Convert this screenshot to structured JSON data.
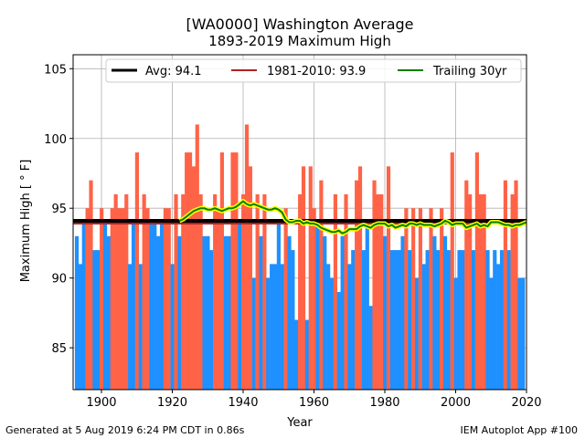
{
  "chart_data": {
    "type": "bar",
    "title": "[WA0000] Washington Average",
    "subtitle": "1893-2019 Maximum High",
    "xlabel": "Year",
    "ylabel": "Maximum High [$^\\circ$F]",
    "ylabel_display": "Maximum High [ ° F]",
    "xlim": [
      1892,
      2020
    ],
    "ylim": [
      82,
      106
    ],
    "xticks": [
      1900,
      1920,
      1940,
      1960,
      1980,
      2000,
      2020
    ],
    "yticks": [
      85,
      90,
      95,
      100,
      105
    ],
    "grid": true,
    "legend_position": "top",
    "bar_colors": {
      "above_average": "#ff6347",
      "below_average": "#1e90ff"
    },
    "years": [
      1893,
      1894,
      1895,
      1896,
      1897,
      1898,
      1899,
      1900,
      1901,
      1902,
      1903,
      1904,
      1905,
      1906,
      1907,
      1908,
      1909,
      1910,
      1911,
      1912,
      1913,
      1914,
      1915,
      1916,
      1917,
      1918,
      1919,
      1920,
      1921,
      1922,
      1923,
      1924,
      1925,
      1926,
      1927,
      1928,
      1929,
      1930,
      1931,
      1932,
      1933,
      1934,
      1935,
      1936,
      1937,
      1938,
      1939,
      1940,
      1941,
      1942,
      1943,
      1944,
      1945,
      1946,
      1947,
      1948,
      1949,
      1950,
      1951,
      1952,
      1953,
      1954,
      1955,
      1956,
      1957,
      1958,
      1959,
      1960,
      1961,
      1962,
      1963,
      1964,
      1965,
      1966,
      1967,
      1968,
      1969,
      1970,
      1971,
      1972,
      1973,
      1974,
      1975,
      1976,
      1977,
      1978,
      1979,
      1980,
      1981,
      1982,
      1983,
      1984,
      1985,
      1986,
      1987,
      1988,
      1989,
      1990,
      1991,
      1992,
      1993,
      1994,
      1995,
      1996,
      1997,
      1998,
      1999,
      2000,
      2001,
      2002,
      2003,
      2004,
      2005,
      2006,
      2007,
      2008,
      2009,
      2010,
      2011,
      2012,
      2013,
      2014,
      2015,
      2016,
      2017,
      2018,
      2019
    ],
    "values": [
      93,
      91,
      94,
      95,
      97,
      92,
      92,
      95,
      94,
      93,
      95,
      96,
      95,
      95,
      96,
      91,
      94,
      99,
      91,
      96,
      95,
      94,
      94,
      93,
      94,
      95,
      95,
      91,
      96,
      93,
      96,
      99,
      99,
      98,
      101,
      96,
      93,
      93,
      92,
      96,
      95,
      99,
      93,
      93,
      99,
      99,
      94,
      96,
      101,
      98,
      90,
      96,
      93,
      96,
      90,
      91,
      91,
      94,
      91,
      95,
      93,
      92,
      87,
      96,
      98,
      87,
      98,
      95,
      94,
      97,
      93,
      91,
      90,
      96,
      89,
      93,
      96,
      91,
      92,
      97,
      98,
      92,
      94,
      88,
      97,
      96,
      96,
      93,
      98,
      92,
      92,
      92,
      93,
      95,
      92,
      95,
      90,
      95,
      91,
      92,
      95,
      93,
      92,
      95,
      93,
      92,
      99,
      90,
      92,
      92,
      97,
      96,
      92,
      99,
      96,
      96,
      92,
      90,
      92,
      91,
      92,
      97,
      92,
      96,
      97,
      90,
      90
    ],
    "avg": 94.1,
    "climo_1981_2010": 93.9,
    "trailing_30yr": {
      "start_year": 1922,
      "values": [
        94.1,
        94.2,
        94.4,
        94.6,
        94.8,
        94.9,
        95.0,
        95.0,
        94.9,
        94.9,
        95.0,
        94.9,
        94.8,
        94.9,
        95.0,
        95.0,
        95.1,
        95.3,
        95.5,
        95.3,
        95.2,
        95.3,
        95.2,
        95.1,
        95.0,
        94.9,
        94.9,
        95.0,
        94.9,
        94.7,
        94.2,
        94.0,
        94.0,
        94.1,
        94.1,
        93.9,
        94.0,
        93.9,
        93.9,
        93.8,
        93.6,
        93.5,
        93.4,
        93.3,
        93.3,
        93.4,
        93.2,
        93.3,
        93.5,
        93.5,
        93.5,
        93.7,
        93.8,
        93.7,
        93.6,
        93.8,
        93.9,
        93.9,
        93.9,
        93.7,
        93.8,
        93.6,
        93.7,
        93.8,
        93.7,
        93.9,
        93.9,
        93.8,
        93.9,
        93.8,
        93.8,
        93.8,
        93.7,
        93.8,
        93.9,
        94.1,
        94.0,
        93.8,
        93.9,
        93.9,
        93.9,
        93.6,
        93.7,
        93.8,
        93.9,
        93.7,
        93.8,
        93.7,
        94.0,
        94.0,
        94.0,
        93.9,
        93.8,
        93.8,
        93.7,
        93.8,
        93.8,
        93.9,
        94.0
      ]
    },
    "legend": [
      {
        "label": "Avg: 94.1",
        "color": "#000000"
      },
      {
        "label": "1981-2010: 93.9",
        "color": "#b22222"
      },
      {
        "label": "Trailing 30yr",
        "color": "#008000"
      }
    ]
  },
  "footer": {
    "left": "Generated at 5 Aug 2019 6:24 PM CDT in 0.86s",
    "right": "IEM Autoplot App #100"
  }
}
